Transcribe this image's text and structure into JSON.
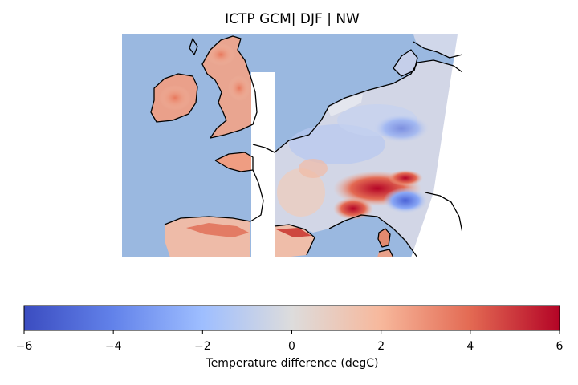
{
  "title": "ICTP GCM| DJF | NW",
  "colorbar": {
    "label": "Temperature difference (degC)",
    "ticks": [
      "−6",
      "−4",
      "−2",
      "0",
      "2",
      "4",
      "6"
    ],
    "min": -6,
    "max": 6,
    "colormap": "coolwarm",
    "colors": [
      "#3b4cc0",
      "#7093f3",
      "#aac7fd",
      "#dddcdc",
      "#f7b89c",
      "#e36a53",
      "#b40426"
    ]
  },
  "map": {
    "ocean_color": "#9ab8e0",
    "missing_color": "#ffffff",
    "coastline_color": "#000000"
  }
}
